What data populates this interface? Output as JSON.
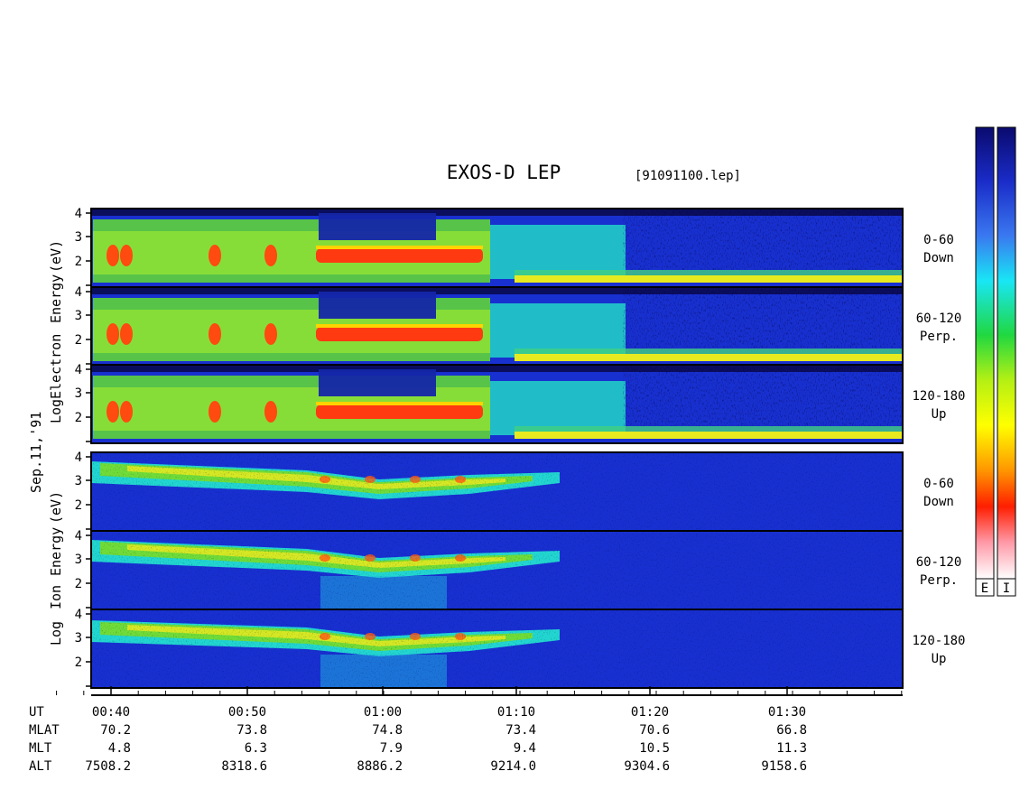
{
  "header": {
    "title": "EXOS-D LEP",
    "file_label": "[91091100.lep]"
  },
  "date_label": "Sep.11,'91",
  "colorbar": {
    "labels": [
      "E",
      "I"
    ]
  },
  "chart_data": {
    "type": "heatmap",
    "x_axis": {
      "label": "UT",
      "ticks": [
        "00:40",
        "00:50",
        "01:00",
        "01:10",
        "01:20",
        "01:30"
      ]
    },
    "aux_rows": [
      {
        "label": "MLAT",
        "values": [
          "70.2",
          "73.8",
          "74.8",
          "73.4",
          "70.6",
          "66.8"
        ]
      },
      {
        "label": "MLT",
        "values": [
          "4.8",
          "6.3",
          "7.9",
          "9.4",
          "10.5",
          "11.3"
        ]
      },
      {
        "label": "ALT",
        "values": [
          "7508.2",
          "8318.6",
          "8886.2",
          "9214.0",
          "9304.6",
          "9158.6"
        ]
      }
    ],
    "groups": [
      {
        "id": "electron",
        "ylabel": "Log Electron Energy (eV)",
        "panels": [
          {
            "pitch": "0-60",
            "direction": "Down",
            "yticks": [
              "4",
              "3",
              "2"
            ]
          },
          {
            "pitch": "60-120",
            "direction": "Perp.",
            "yticks": [
              "4",
              "3",
              "2"
            ]
          },
          {
            "pitch": "120-180",
            "direction": "Up",
            "yticks": [
              "4",
              "3",
              "2"
            ]
          }
        ]
      },
      {
        "id": "ion",
        "ylabel": "Log Ion Energy (eV)",
        "panels": [
          {
            "pitch": "0-60",
            "direction": "Down",
            "yticks": [
              "4",
              "3",
              "2"
            ]
          },
          {
            "pitch": "60-120",
            "direction": "Perp.",
            "yticks": [
              "4",
              "3",
              "2"
            ]
          },
          {
            "pitch": "120-180",
            "direction": "Up",
            "yticks": [
              "4",
              "3",
              "2"
            ]
          }
        ]
      }
    ]
  }
}
